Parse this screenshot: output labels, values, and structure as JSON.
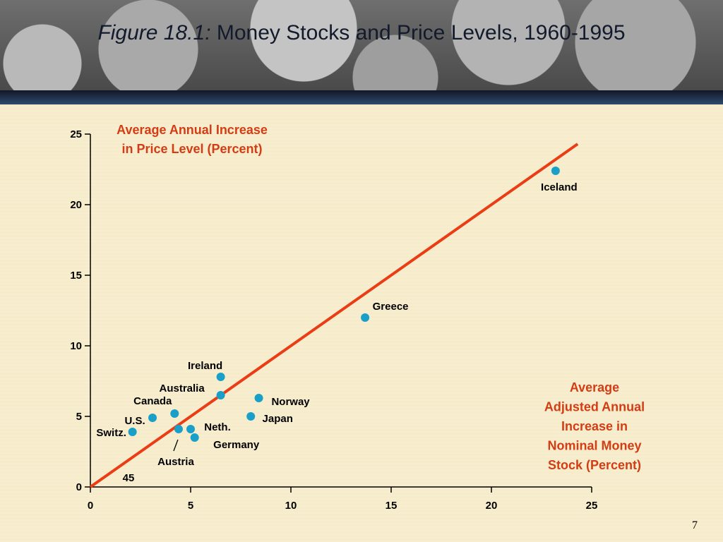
{
  "slide": {
    "title_fig": "Figure 18.1:",
    "title_text": "Money Stocks and Price Levels, 1960-1995",
    "page_number": "7"
  },
  "chart_data": {
    "type": "scatter",
    "x_axis": {
      "label_lines": [
        "Average",
        "Adjusted Annual",
        "Increase in",
        "Nominal Money",
        "Stock (Percent)"
      ],
      "ticks": [
        0,
        5,
        10,
        15,
        20,
        25
      ],
      "range": [
        0,
        25
      ]
    },
    "y_axis": {
      "label_lines": [
        "Average Annual Increase",
        "in Price Level (Percent)"
      ],
      "ticks": [
        0,
        5,
        10,
        15,
        20,
        25
      ],
      "range": [
        0,
        25
      ]
    },
    "line_label": "45",
    "reference_line": {
      "from": [
        0,
        0
      ],
      "to": [
        24.3,
        24.3
      ]
    },
    "points": [
      {
        "name": "Iceland",
        "x": 23.2,
        "y": 22.4
      },
      {
        "name": "Greece",
        "x": 13.7,
        "y": 12.0
      },
      {
        "name": "Ireland",
        "x": 6.5,
        "y": 7.8
      },
      {
        "name": "Australia",
        "x": 6.5,
        "y": 6.5
      },
      {
        "name": "Norway",
        "x": 8.4,
        "y": 6.3
      },
      {
        "name": "Japan",
        "x": 8.0,
        "y": 5.0
      },
      {
        "name": "Canada",
        "x": 4.2,
        "y": 5.2
      },
      {
        "name": "U.S.",
        "x": 3.1,
        "y": 4.9
      },
      {
        "name": "Switz.",
        "x": 2.1,
        "y": 3.9
      },
      {
        "name": "Neth.",
        "x": 5.0,
        "y": 4.1
      },
      {
        "name": "Germany",
        "x": 5.2,
        "y": 3.5
      },
      {
        "name": "Austria",
        "x": 4.4,
        "y": 4.1
      }
    ]
  }
}
